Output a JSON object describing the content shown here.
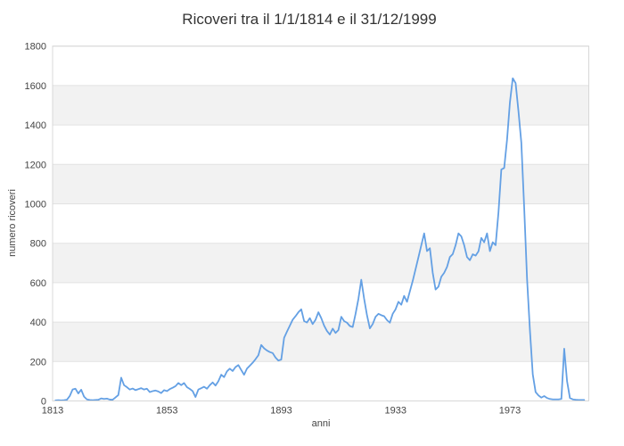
{
  "chart_data": {
    "type": "line",
    "title": "Ricoveri tra il 1/1/1814 e il 31/12/1999",
    "xlabel": "anni",
    "ylabel": "numero ricoveri",
    "legend": "none",
    "grid": "horizontal alternating bands every 200",
    "x_years": {
      "from": 1814,
      "to": 1999,
      "step": 1
    },
    "values": [
      3,
      4,
      3,
      4,
      6,
      25,
      58,
      62,
      38,
      57,
      22,
      8,
      5,
      4,
      5,
      6,
      13,
      10,
      12,
      7,
      6,
      18,
      30,
      118,
      80,
      70,
      58,
      63,
      55,
      60,
      65,
      58,
      62,
      45,
      50,
      53,
      48,
      40,
      55,
      50,
      60,
      67,
      75,
      91,
      80,
      91,
      70,
      61,
      50,
      20,
      58,
      65,
      72,
      62,
      80,
      94,
      78,
      100,
      133,
      121,
      150,
      164,
      152,
      172,
      182,
      157,
      133,
      164,
      179,
      194,
      212,
      232,
      284,
      267,
      256,
      248,
      243,
      220,
      205,
      210,
      320,
      352,
      382,
      412,
      430,
      450,
      465,
      405,
      398,
      420,
      390,
      412,
      450,
      420,
      382,
      355,
      337,
      367,
      345,
      360,
      427,
      405,
      397,
      380,
      375,
      442,
      518,
      615,
      518,
      435,
      368,
      390,
      427,
      442,
      435,
      430,
      410,
      397,
      442,
      465,
      503,
      488,
      533,
      503,
      556,
      609,
      669,
      729,
      790,
      850,
      760,
      775,
      650,
      565,
      580,
      630,
      650,
      680,
      730,
      745,
      790,
      850,
      835,
      790,
      730,
      714,
      744,
      737,
      759,
      827,
      805,
      850,
      760,
      805,
      790,
      956,
      1174,
      1182,
      1325,
      1514,
      1637,
      1612,
      1469,
      1310,
      980,
      620,
      360,
      135,
      45,
      28,
      17,
      25,
      15,
      10,
      8,
      8,
      8,
      10,
      265,
      100,
      15,
      8,
      6,
      5,
      5,
      5
    ],
    "xticks": [
      1813,
      1853,
      1893,
      1933,
      1973
    ],
    "yticks": [
      0,
      200,
      400,
      600,
      800,
      1000,
      1200,
      1400,
      1600,
      1800
    ],
    "xlim": [
      1813,
      2000.6
    ],
    "ylim": [
      0,
      1800
    ],
    "colors": {
      "line": "#64A0E4",
      "band": "#f2f2f2",
      "grid": "#e2e2e2",
      "border": "#d8d8d8",
      "tick_text": "#444444",
      "title_text": "#333333",
      "background": "#ffffff"
    }
  }
}
